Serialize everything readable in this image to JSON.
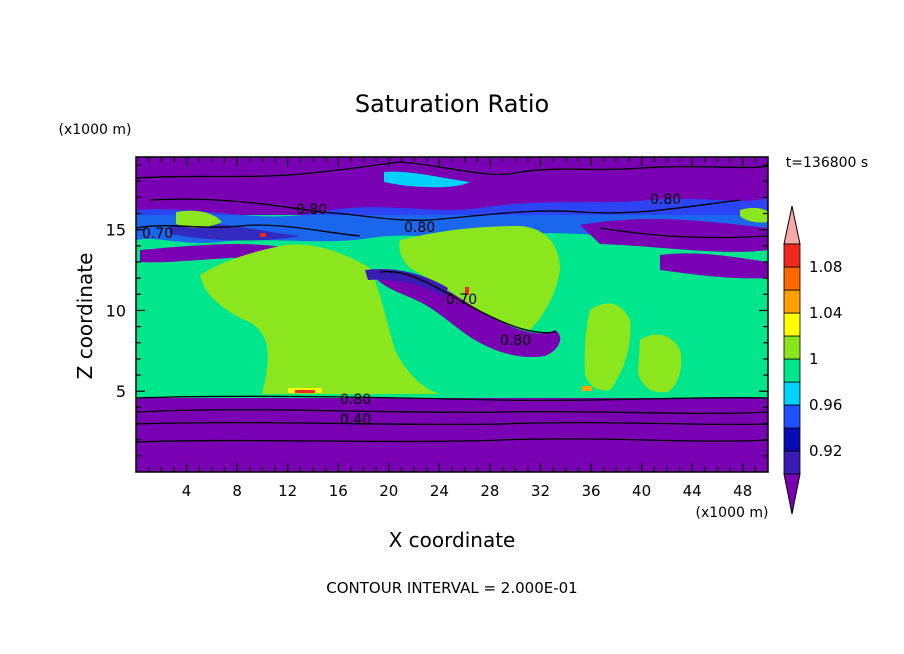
{
  "chart_data": {
    "type": "heatmap",
    "title": "Saturation Ratio",
    "xlabel": "X coordinate",
    "ylabel": "Z coordinate",
    "x_unit": "(x1000 m)",
    "y_unit": "(x1000 m)",
    "time_label": "t=136800 s",
    "footer": "CONTOUR INTERVAL = 2.000E-01",
    "xlim": [
      0,
      50
    ],
    "ylim": [
      0,
      19.5
    ],
    "x_ticks": [
      "4",
      "8",
      "12",
      "16",
      "20",
      "24",
      "28",
      "32",
      "36",
      "40",
      "44",
      "48"
    ],
    "y_ticks": [
      "5",
      "10",
      "15"
    ],
    "colorbar": {
      "levels": [
        0.92,
        0.94,
        0.96,
        0.98,
        1.0,
        1.02,
        1.04,
        1.06,
        1.08,
        1.1
      ],
      "tick_labels": [
        "1.08",
        "1.04",
        "1",
        "0.96",
        "0.92"
      ],
      "colors": [
        "#7A00B4",
        "#3A1CB4",
        "#0A0AB4",
        "#1E50FF",
        "#00D2FA",
        "#00E68C",
        "#8CE61E",
        "#FFFF00",
        "#FFA000",
        "#FF6A00",
        "#F0281E",
        "#F8A8A8"
      ]
    },
    "contour_labels": [
      "0.80",
      "0.80",
      "0.80",
      "0.40",
      "0.70",
      "0.80",
      "0.70",
      "0.80"
    ]
  }
}
